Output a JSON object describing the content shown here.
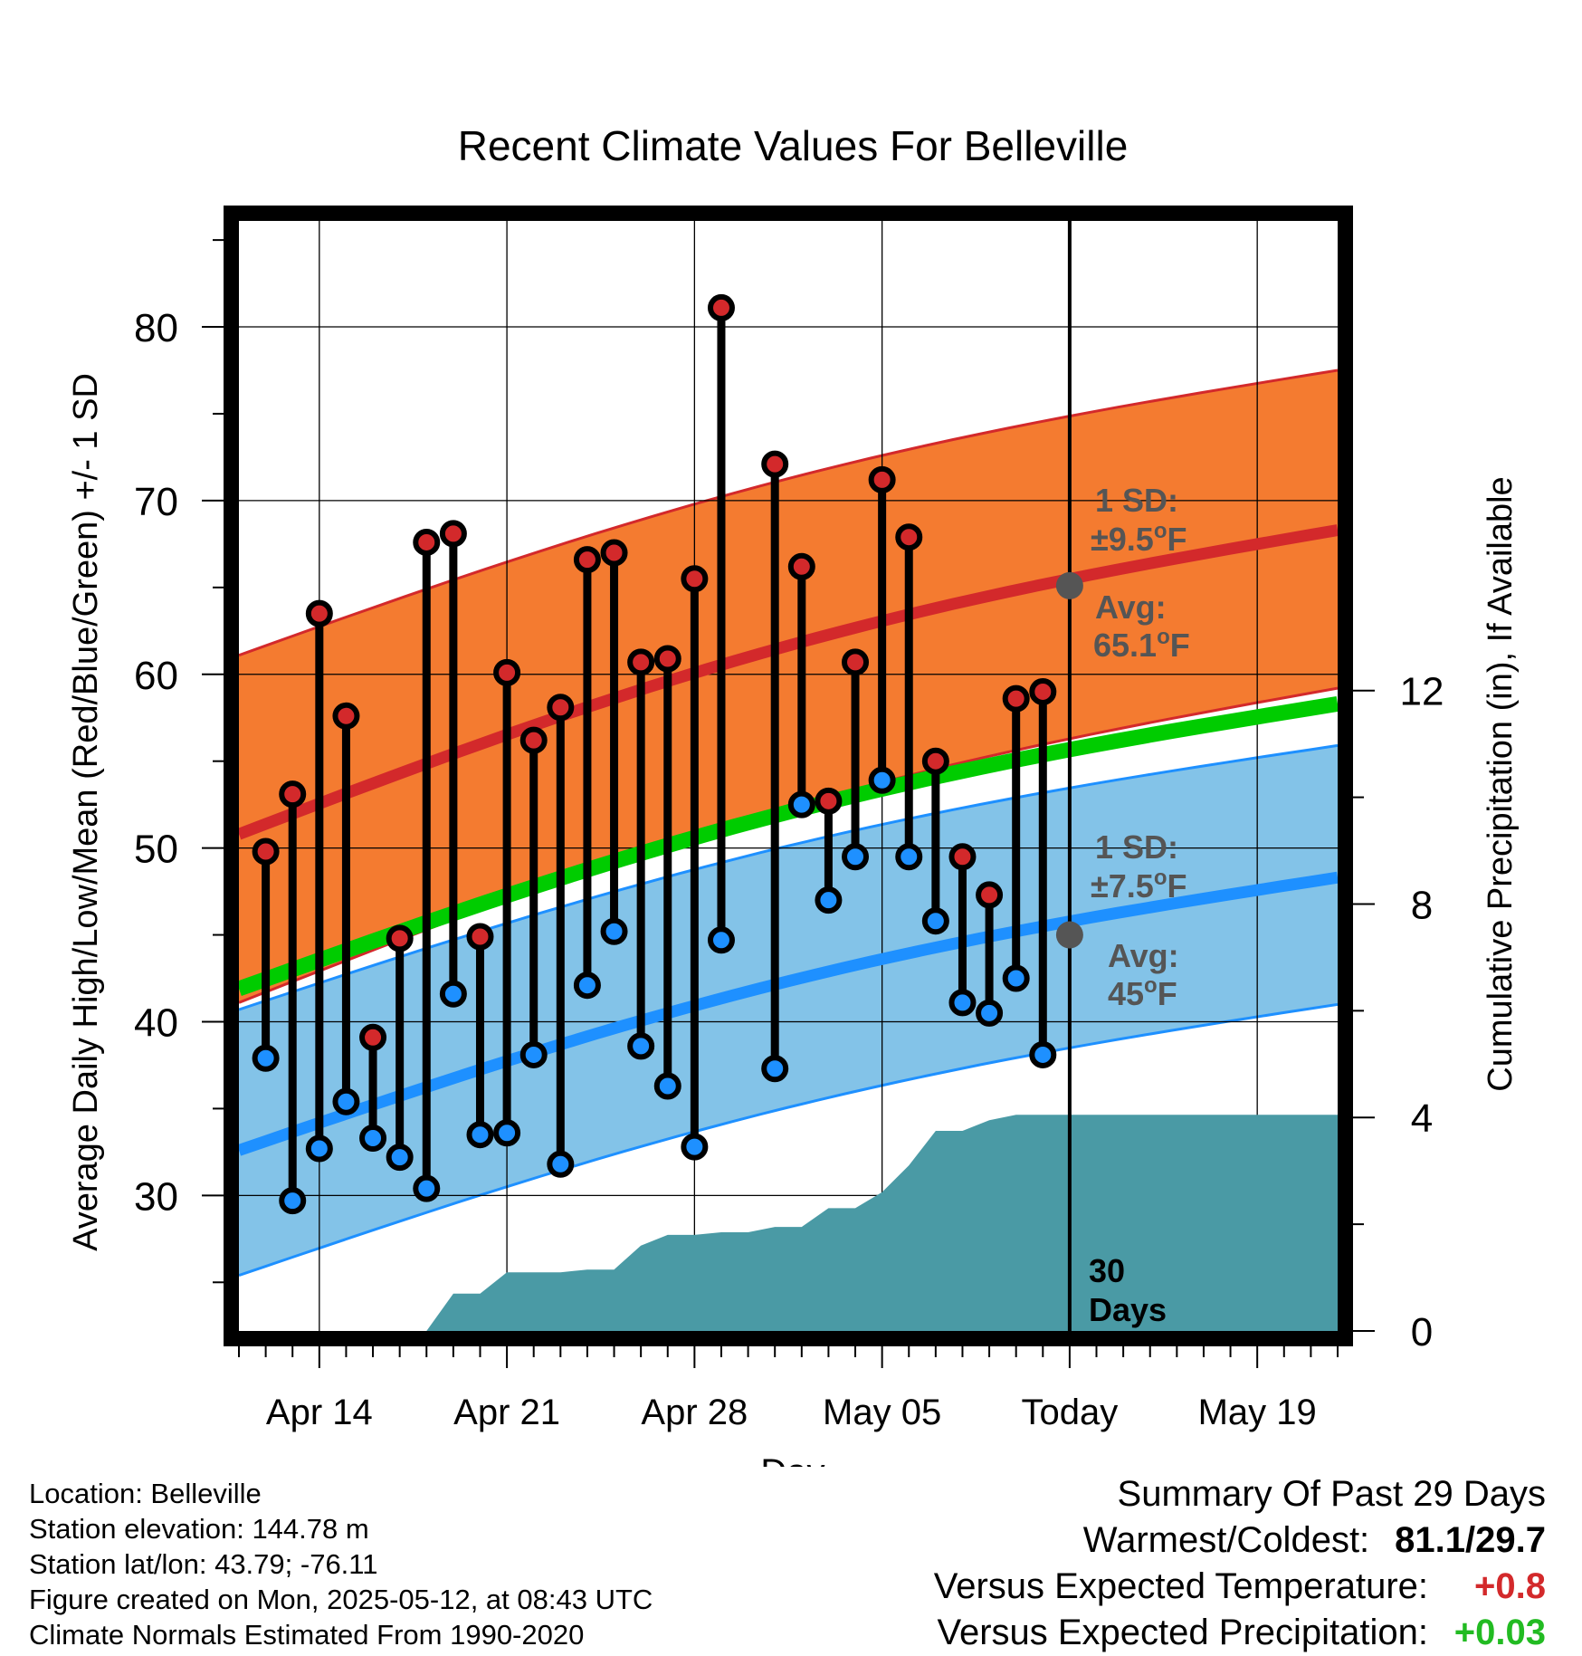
{
  "chart_data": {
    "type": "line",
    "title": "Recent Climate Values For Belleville",
    "xlabel": "Day",
    "ylabel": "Average Daily High/Low/Mean (Red/Blue/Green) +/- 1 SD",
    "y2label": "Cumulative Precipitation (in), If Available",
    "x_tick_labels": [
      "Apr 14",
      "Apr 21",
      "Apr 28",
      "May 05",
      "Today",
      "May 19"
    ],
    "y_ticks": [
      30,
      40,
      50,
      60,
      70,
      80
    ],
    "y2_ticks": [
      0,
      4,
      8,
      12
    ],
    "ylim": [
      22.2,
      86.1
    ],
    "y2lim": [
      0,
      20.8
    ],
    "x_dates": [
      "Apr 11",
      "Apr 12",
      "Apr 13",
      "Apr 14",
      "Apr 15",
      "Apr 16",
      "Apr 17",
      "Apr 18",
      "Apr 19",
      "Apr 20",
      "Apr 21",
      "Apr 22",
      "Apr 23",
      "Apr 24",
      "Apr 25",
      "Apr 26",
      "Apr 27",
      "Apr 28",
      "Apr 29",
      "Apr 30",
      "May 01",
      "May 02",
      "May 03",
      "May 04",
      "May 05",
      "May 06",
      "May 07",
      "May 08",
      "May 09",
      "May 10",
      "May 11",
      "May 12",
      "May 13",
      "May 14",
      "May 15",
      "May 16",
      "May 17",
      "May 18",
      "May 19",
      "May 20",
      "May 21",
      "May 22"
    ],
    "daily": [
      {
        "date": "Apr 12",
        "high": 49.8,
        "low": 37.9
      },
      {
        "date": "Apr 13",
        "high": 53.1,
        "low": 29.7
      },
      {
        "date": "Apr 14",
        "high": 63.5,
        "low": 32.7
      },
      {
        "date": "Apr 15",
        "high": 57.6,
        "low": 35.4
      },
      {
        "date": "Apr 16",
        "high": 39.1,
        "low": 33.3
      },
      {
        "date": "Apr 17",
        "high": 44.8,
        "low": 32.2
      },
      {
        "date": "Apr 18",
        "high": 67.6,
        "low": 30.4
      },
      {
        "date": "Apr 19",
        "high": 68.1,
        "low": 41.6
      },
      {
        "date": "Apr 20",
        "high": 44.9,
        "low": 33.5
      },
      {
        "date": "Apr 21",
        "high": 60.1,
        "low": 33.6
      },
      {
        "date": "Apr 22",
        "high": 56.2,
        "low": 38.1
      },
      {
        "date": "Apr 23",
        "high": 58.1,
        "low": 31.8
      },
      {
        "date": "Apr 24",
        "high": 66.6,
        "low": 42.1
      },
      {
        "date": "Apr 25",
        "high": 67.0,
        "low": 45.2
      },
      {
        "date": "Apr 26",
        "high": 60.7,
        "low": 38.6
      },
      {
        "date": "Apr 27",
        "high": 60.9,
        "low": 36.3
      },
      {
        "date": "Apr 28",
        "high": 65.5,
        "low": 32.8
      },
      {
        "date": "Apr 29",
        "high": 81.1,
        "low": 44.7
      },
      {
        "date": "May 01",
        "high": 72.1,
        "low": 37.3
      },
      {
        "date": "May 02",
        "high": 66.2,
        "low": 52.5
      },
      {
        "date": "May 03",
        "high": 52.7,
        "low": 47.0
      },
      {
        "date": "May 04",
        "high": 60.7,
        "low": 49.5
      },
      {
        "date": "May 05",
        "high": 71.2,
        "low": 53.9
      },
      {
        "date": "May 06",
        "high": 67.9,
        "low": 49.5
      },
      {
        "date": "May 07",
        "high": 55.0,
        "low": 45.8
      },
      {
        "date": "May 08",
        "high": 49.5,
        "low": 41.1
      },
      {
        "date": "May 09",
        "high": 47.3,
        "low": 40.5
      },
      {
        "date": "May 10",
        "high": 58.6,
        "low": 42.5
      },
      {
        "date": "May 11",
        "high": 59.0,
        "low": 38.1
      }
    ],
    "normals": {
      "dates": [
        "Apr 11",
        "May 22"
      ],
      "high_avg": [
        50.8,
        68.3
      ],
      "high_upper": [
        61.1,
        77.5
      ],
      "high_lower": [
        41.1,
        59.2
      ],
      "low_avg": [
        32.6,
        48.3
      ],
      "low_upper": [
        40.7,
        55.9
      ],
      "low_lower": [
        25.4,
        41.0
      ],
      "mean_avg": [
        41.9,
        58.3
      ]
    },
    "precip_cumulative": [
      {
        "date": "Apr 18",
        "value": 0.0
      },
      {
        "date": "Apr 19",
        "value": 0.7
      },
      {
        "date": "Apr 20",
        "value": 0.7
      },
      {
        "date": "Apr 21",
        "value": 1.1
      },
      {
        "date": "Apr 22",
        "value": 1.1
      },
      {
        "date": "Apr 23",
        "value": 1.1
      },
      {
        "date": "Apr 24",
        "value": 1.15
      },
      {
        "date": "Apr 25",
        "value": 1.15
      },
      {
        "date": "Apr 26",
        "value": 1.6
      },
      {
        "date": "Apr 27",
        "value": 1.8
      },
      {
        "date": "Apr 28",
        "value": 1.8
      },
      {
        "date": "Apr 29",
        "value": 1.85
      },
      {
        "date": "Apr 30",
        "value": 1.85
      },
      {
        "date": "May 01",
        "value": 1.95
      },
      {
        "date": "May 02",
        "value": 1.95
      },
      {
        "date": "May 03",
        "value": 2.3
      },
      {
        "date": "May 04",
        "value": 2.3
      },
      {
        "date": "May 05",
        "value": 2.6
      },
      {
        "date": "May 06",
        "value": 3.1
      },
      {
        "date": "May 07",
        "value": 3.75
      },
      {
        "date": "May 08",
        "value": 3.75
      },
      {
        "date": "May 09",
        "value": 3.95
      },
      {
        "date": "May 10",
        "value": 4.05
      },
      {
        "date": "May 11",
        "value": 4.05
      },
      {
        "date": "May 22",
        "value": 4.05
      }
    ],
    "today_date": "May 12",
    "today_high_avg": 65.1,
    "today_low_avg": 45,
    "annotations": {
      "high_sd_l1": "1 SD:",
      "high_sd_l2": "±9.5",
      "high_avg_l1": "Avg:",
      "high_avg_l2": "65.1",
      "low_sd_l1": "1 SD:",
      "low_sd_l2": "±7.5",
      "low_avg_l1": "Avg:",
      "low_avg_l2": "45",
      "degree_symbol": "o",
      "unit": "F",
      "days_l1": "30",
      "days_l2": "Days"
    },
    "colors": {
      "high_band": "#f47b30",
      "high_line": "#d3292b",
      "low_band": "#83c3e8",
      "low_line": "#1e90ff",
      "mean_line": "#00cc00",
      "precip": "#4a9aa5",
      "high_marker": "#d3292b",
      "low_marker": "#1e90ff",
      "annotation": "#555555",
      "today_dot": "#555555"
    }
  },
  "footer": {
    "location": "Location: Belleville",
    "elevation": "Station elevation: 144.78 m",
    "latlon": "Station lat/lon: 43.79; -76.11",
    "created": "Figure created on Mon, 2025-05-12, at 08:43 UTC",
    "normals": "Climate Normals Estimated From 1990-2020"
  },
  "summary": {
    "heading": "Summary Of Past 29 Days",
    "warmest_label": "Warmest/Coldest:",
    "warmest_value": "81.1/29.7",
    "temp_label": "Versus Expected Temperature:",
    "temp_value": "+0.8",
    "temp_color": "#d3292b",
    "precip_label": "Versus Expected Precipitation:",
    "precip_value": "+0.03",
    "precip_color": "#22bb22"
  }
}
